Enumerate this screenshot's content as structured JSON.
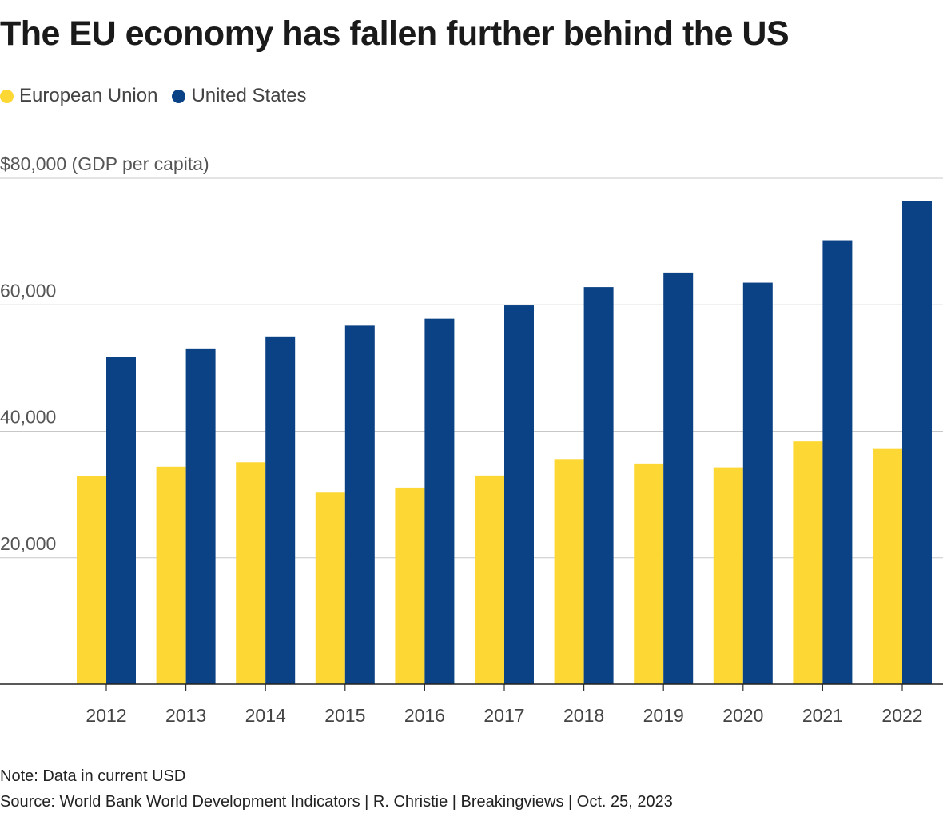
{
  "title": "The EU economy has fallen further behind the US",
  "legend": [
    {
      "name": "European Union",
      "color": "#fdd835"
    },
    {
      "name": "United States",
      "color": "#0b4285"
    }
  ],
  "note": "Note: Data in current USD",
  "source": "Source: World Bank World Development Indicators | R. Christie | Breakingviews | Oct. 25, 2023",
  "chart_data": {
    "type": "bar",
    "title": "The EU economy has fallen further behind the US",
    "ylabel": "(GDP per capita)",
    "categories": [
      "2012",
      "2013",
      "2014",
      "2015",
      "2016",
      "2017",
      "2018",
      "2019",
      "2020",
      "2021",
      "2022"
    ],
    "series": [
      {
        "name": "European Union",
        "color": "#fdd835",
        "values": [
          32900,
          34400,
          35100,
          30300,
          31100,
          33000,
          35600,
          34900,
          34300,
          38400,
          37200
        ]
      },
      {
        "name": "United States",
        "color": "#0b4285",
        "values": [
          51700,
          53100,
          55000,
          56700,
          57800,
          59900,
          62800,
          65100,
          63500,
          70200,
          76400
        ]
      }
    ],
    "ylim": [
      0,
      80000
    ],
    "yticks": [
      {
        "value": 20000,
        "label": "20,000"
      },
      {
        "value": 40000,
        "label": "40,000"
      },
      {
        "value": 60000,
        "label": "60,000"
      },
      {
        "value": 80000,
        "label": "$80,000"
      }
    ],
    "grid": true,
    "legend_position": "top-left"
  }
}
